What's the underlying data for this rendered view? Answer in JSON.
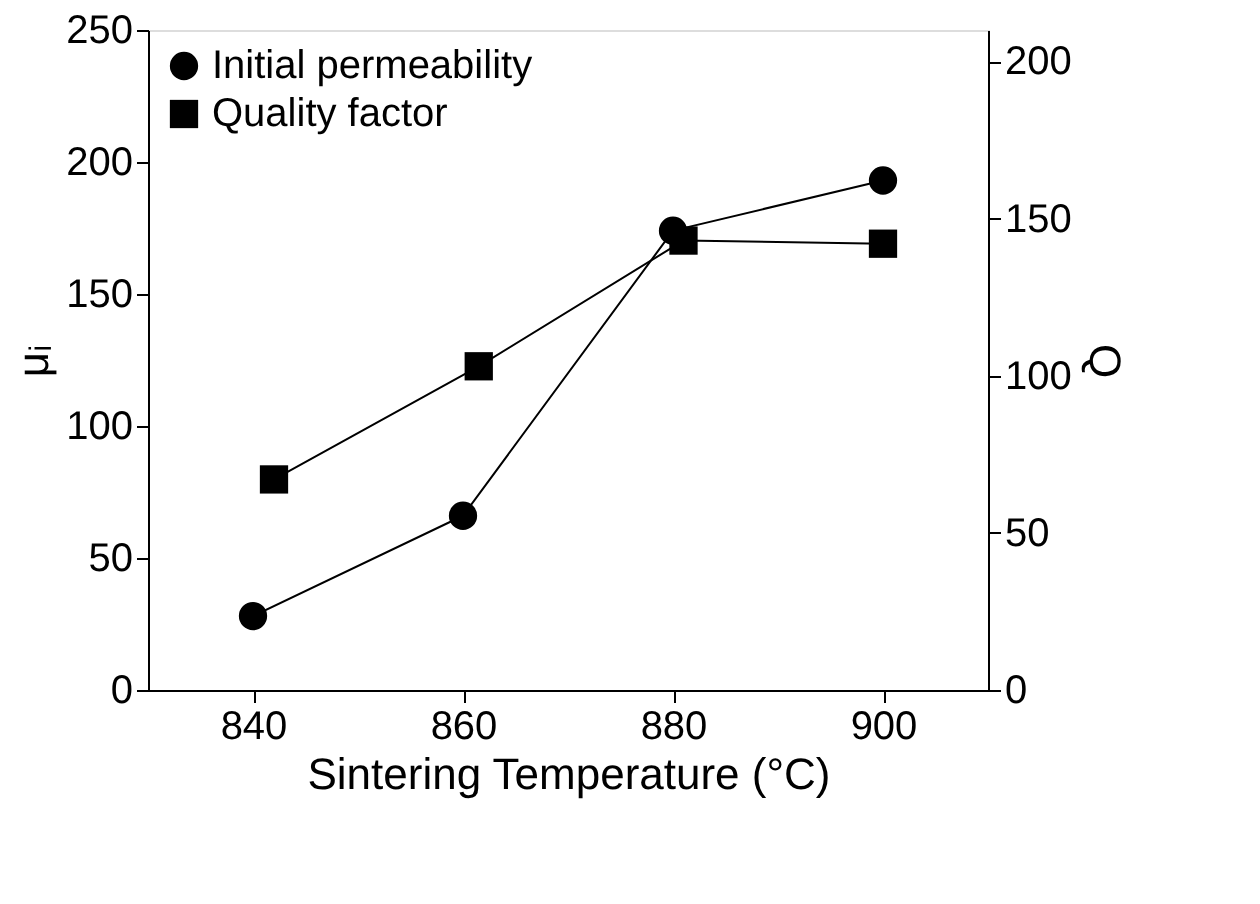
{
  "chart_data": {
    "type": "line",
    "xlabel": "Sintering Temperature (°C)",
    "ylabel": "μᵢ",
    "y2label": "Q",
    "xlim": [
      830,
      910
    ],
    "xticks": [
      840,
      860,
      880,
      900
    ],
    "ylim": [
      0,
      250
    ],
    "yticks": [
      0,
      50,
      100,
      150,
      200,
      250
    ],
    "y2lim": [
      0,
      210
    ],
    "y2ticks": [
      0,
      50,
      100,
      150,
      200
    ],
    "grid": false,
    "legend": "top left",
    "line_style": "solid",
    "series": [
      {
        "name": "Initial permeability",
        "color": "#000000",
        "marker": "circle",
        "x": [
          840,
          860,
          880,
          900
        ],
        "values": [
          28,
          66,
          174,
          193
        ]
      },
      {
        "name": "Quality factor",
        "color": "#000000",
        "marker": "square",
        "axis": "y2",
        "x": [
          842,
          861.5,
          881,
          900
        ],
        "values": [
          67,
          103,
          143,
          142
        ]
      }
    ]
  }
}
